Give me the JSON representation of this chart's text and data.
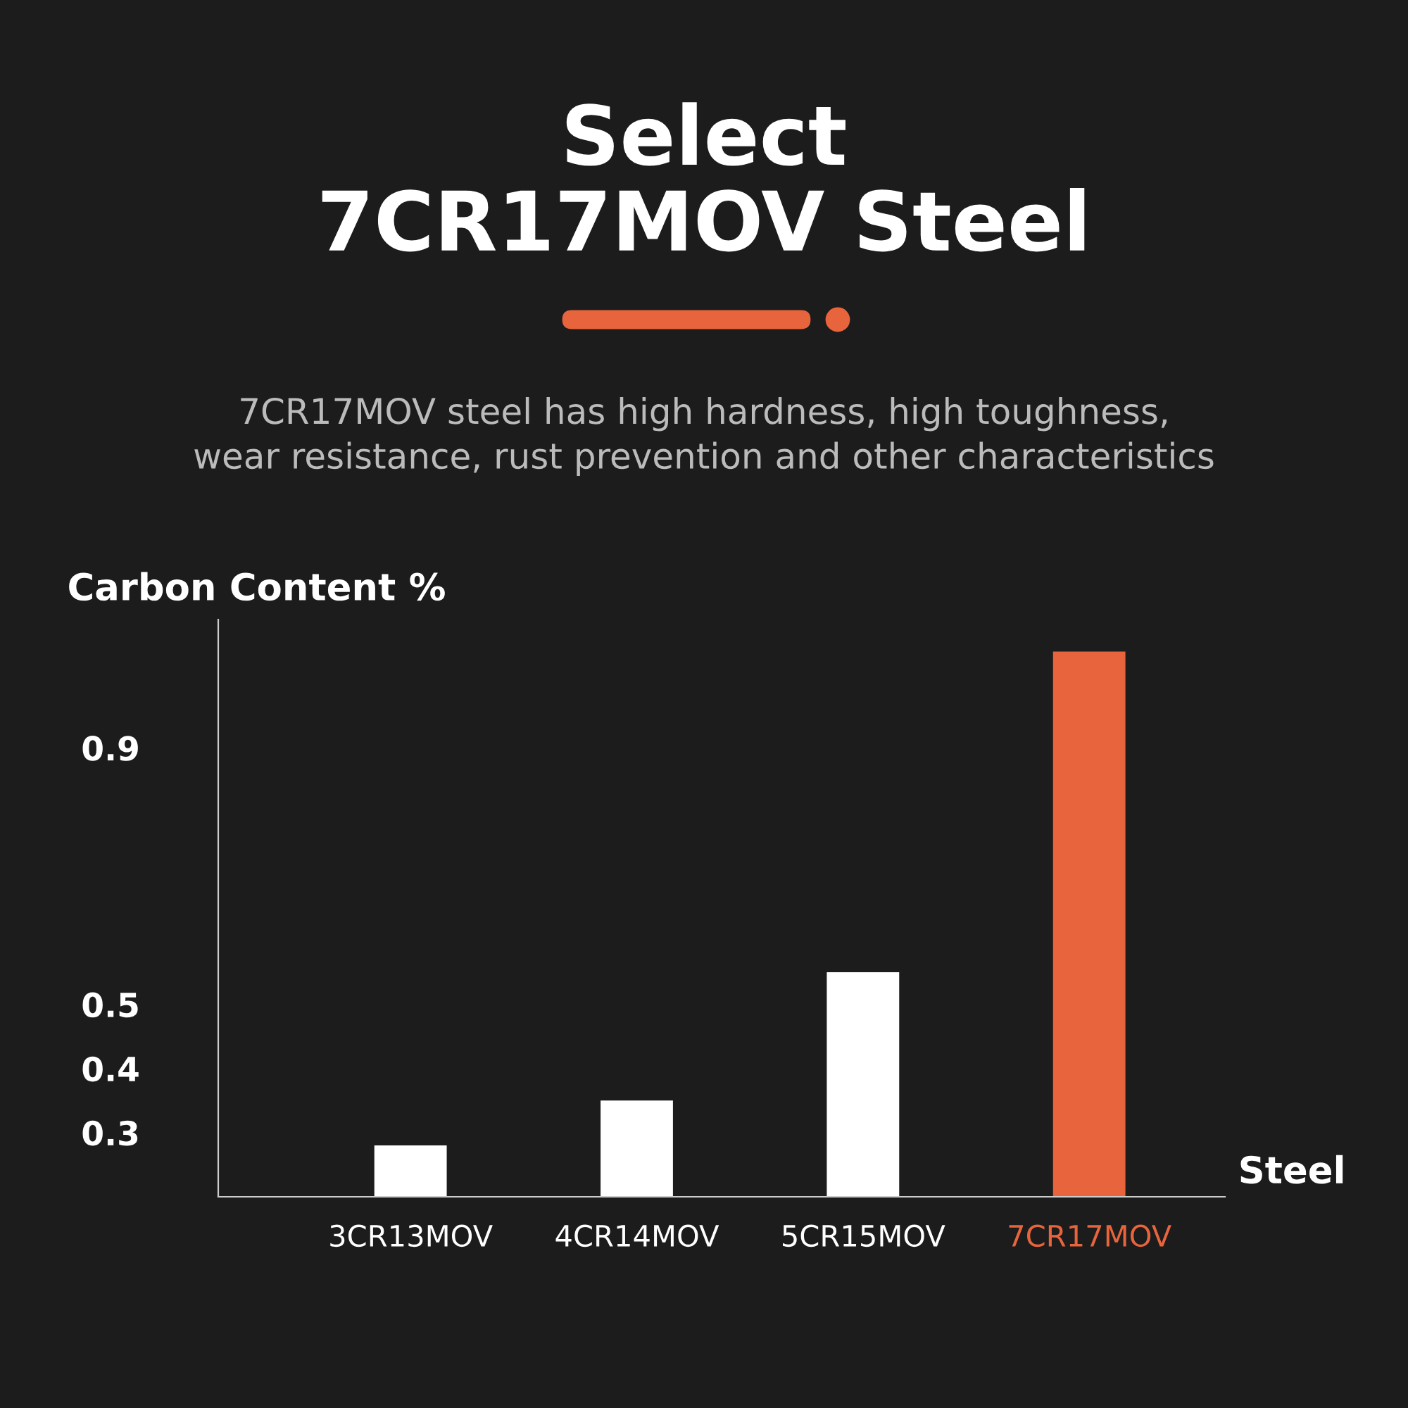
{
  "chart_data": {
    "type": "bar",
    "title": "Select\n7CR17MOV Steel",
    "subtitle": "7CR17MOV steel has high hardness, high toughness,\nwear resistance, rust prevention and other characteristics",
    "ylabel": "Carbon Content %",
    "xlabel": "Steel",
    "categories": [
      "3CR13MOV",
      "4CR14MOV",
      "5CR15MOV",
      "7CR17MOV"
    ],
    "values": [
      0.28,
      0.35,
      0.55,
      1.05
    ],
    "colors": [
      "#ffffff",
      "#ffffff",
      "#ffffff",
      "#e8643c"
    ],
    "ylim": [
      0.2,
      1.1
    ],
    "yticks": [
      0.3,
      0.4,
      0.5,
      0.9
    ],
    "grid": false,
    "legend": false
  }
}
